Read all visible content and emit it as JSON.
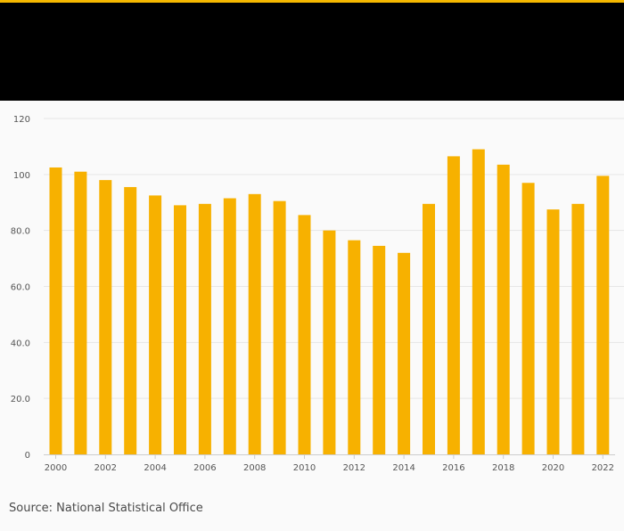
{
  "colors": {
    "accent": "#f5b800",
    "header": "#000000",
    "bar": "#f7b100",
    "grid": "#e6e6e6",
    "axis": "#cccccc",
    "text": "#555555"
  },
  "source": "Source: National Statistical Office",
  "chart_data": {
    "type": "bar",
    "title": "",
    "xlabel": "",
    "ylabel": "",
    "ylim": [
      0,
      120
    ],
    "yticks": [
      0,
      20,
      40,
      60,
      80,
      100,
      120
    ],
    "ytick_labels": [
      "0",
      "20.0",
      "40.0",
      "60.0",
      "80.0",
      "100",
      "120"
    ],
    "categories": [
      "2000",
      "2001",
      "2002",
      "2003",
      "2004",
      "2005",
      "2006",
      "2007",
      "2008",
      "2009",
      "2010",
      "2011",
      "2012",
      "2013",
      "2014",
      "2015",
      "2016",
      "2017",
      "2018",
      "2019",
      "2020",
      "2021",
      "2022"
    ],
    "xtick_labels": [
      "2000",
      "2002",
      "2004",
      "2006",
      "2008",
      "2010",
      "2012",
      "2014",
      "2016",
      "2018",
      "2020",
      "2022"
    ],
    "values": [
      102.5,
      101,
      98,
      95.5,
      92.5,
      89,
      89.5,
      91.5,
      93,
      90.5,
      85.5,
      80,
      76.5,
      74.5,
      72,
      89.5,
      106.5,
      109,
      103.5,
      97,
      87.5,
      89.5,
      99.5
    ]
  }
}
